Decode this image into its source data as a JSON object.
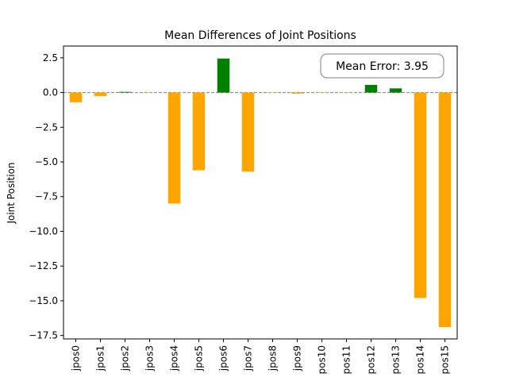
{
  "chart_data": {
    "type": "bar",
    "title": "Mean Differences of Joint Positions",
    "xlabel": "",
    "ylabel": "Joint Position",
    "categories": [
      "jpos0",
      "jpos1",
      "jpos2",
      "jpos3",
      "jpos4",
      "jpos5",
      "jpos6",
      "jpos7",
      "jpos8",
      "jpos9",
      "pos10",
      "pos11",
      "pos12",
      "pos13",
      "pos14",
      "pos15"
    ],
    "values": [
      -0.7,
      -0.25,
      0.05,
      0.0,
      -8.0,
      -5.6,
      2.45,
      -5.7,
      0.0,
      -0.08,
      0.0,
      0.0,
      0.55,
      0.3,
      -14.8,
      -16.9
    ],
    "ylim": [
      -17.75,
      3.35
    ],
    "yticks": [
      2.5,
      0.0,
      -2.5,
      -5.0,
      -7.5,
      -10.0,
      -12.5,
      -15.0,
      -17.5
    ],
    "ytick_labels": [
      "2.5",
      "0.0",
      "−2.5",
      "−5.0",
      "−7.5",
      "−10.0",
      "−12.5",
      "−15.0",
      "−17.5"
    ],
    "positive_color": "#008000",
    "negative_color": "#FFA500",
    "zero_line": {
      "y": 0,
      "style": "dashed",
      "color": "#808080"
    },
    "annotation": "Mean Error: 3.95",
    "grid": false
  }
}
